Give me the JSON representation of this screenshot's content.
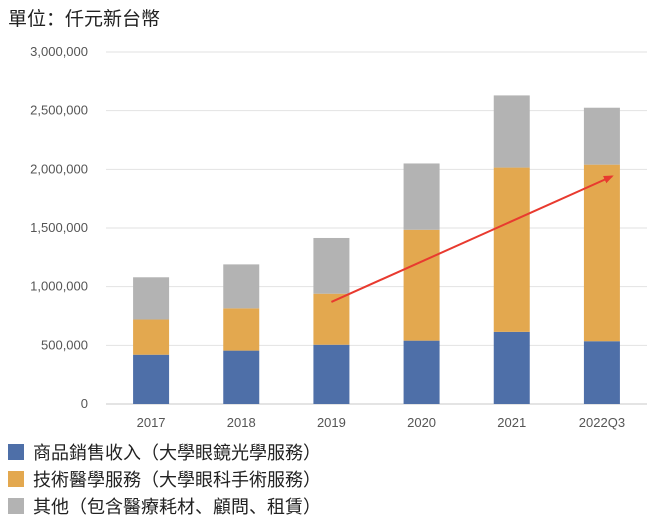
{
  "chart_data": {
    "type": "bar",
    "stacked": true,
    "unit_label": "單位：仟元新台幣",
    "categories": [
      "2017",
      "2018",
      "2019",
      "2020",
      "2021",
      "2022Q3"
    ],
    "series": [
      {
        "name": "商品銷售收入（大學眼鏡光學服務）",
        "color": "#4e6fa8",
        "values": [
          420000,
          455000,
          505000,
          540000,
          615000,
          535000
        ]
      },
      {
        "name": "技術醫學服務（大學眼科手術服務）",
        "color": "#e3a84f",
        "values": [
          300000,
          360000,
          435000,
          945000,
          1400000,
          1505000
        ]
      },
      {
        "name": "其他（包含醫療耗材、顧問、租賃）",
        "color": "#b3b3b3",
        "values": [
          360000,
          375000,
          475000,
          565000,
          615000,
          485000
        ]
      }
    ],
    "ylim": [
      0,
      3000000
    ],
    "yticks": [
      "0",
      "500,000",
      "1,000,000",
      "1,500,000",
      "2,000,000",
      "2,500,000",
      "3,000,000"
    ],
    "grid": true,
    "legend_position": "bottom",
    "annotation": {
      "type": "arrow",
      "color": "#e83a2f",
      "from": [
        "2019",
        870000
      ],
      "to": [
        "2022Q3",
        1940000
      ]
    }
  }
}
